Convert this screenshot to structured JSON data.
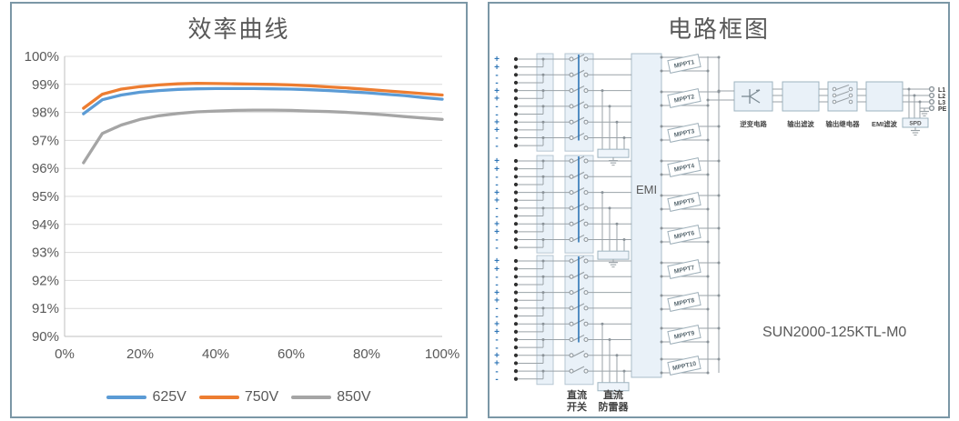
{
  "page": {
    "background": "#ffffff",
    "panel_border_color": "#7b97a6"
  },
  "left_panel": {
    "title": "效率曲线",
    "chart_data": {
      "type": "line",
      "title": "效率曲线",
      "xlabel": "",
      "ylabel": "",
      "xlim": [
        0,
        100
      ],
      "ylim": [
        90,
        100
      ],
      "xticks": [
        0,
        20,
        40,
        60,
        80,
        100
      ],
      "xtick_labels": [
        "0%",
        "20%",
        "40%",
        "60%",
        "80%",
        "100%"
      ],
      "yticks": [
        100,
        99,
        98,
        97,
        96,
        95,
        94,
        93,
        92,
        91,
        90
      ],
      "ytick_labels": [
        "100%",
        "99%",
        "98%",
        "97%",
        "96%",
        "95%",
        "94%",
        "93%",
        "92%",
        "91%",
        "90%"
      ],
      "grid": "horizontal",
      "legend_position": "bottom",
      "series": [
        {
          "name": "625V",
          "color": "#5B9BD5",
          "points": [
            [
              5,
              97.95
            ],
            [
              10,
              98.45
            ],
            [
              15,
              98.62
            ],
            [
              20,
              98.72
            ],
            [
              25,
              98.78
            ],
            [
              30,
              98.82
            ],
            [
              35,
              98.84
            ],
            [
              40,
              98.85
            ],
            [
              45,
              98.85
            ],
            [
              50,
              98.85
            ],
            [
              55,
              98.84
            ],
            [
              60,
              98.83
            ],
            [
              65,
              98.81
            ],
            [
              70,
              98.78
            ],
            [
              75,
              98.74
            ],
            [
              80,
              98.7
            ],
            [
              85,
              98.65
            ],
            [
              90,
              98.6
            ],
            [
              95,
              98.53
            ],
            [
              100,
              98.47
            ]
          ]
        },
        {
          "name": "750V",
          "color": "#ED7D31",
          "points": [
            [
              5,
              98.15
            ],
            [
              10,
              98.65
            ],
            [
              15,
              98.83
            ],
            [
              20,
              98.92
            ],
            [
              25,
              98.98
            ],
            [
              30,
              99.02
            ],
            [
              35,
              99.04
            ],
            [
              40,
              99.03
            ],
            [
              45,
              99.02
            ],
            [
              50,
              99.01
            ],
            [
              55,
              99.0
            ],
            [
              60,
              98.98
            ],
            [
              65,
              98.95
            ],
            [
              70,
              98.91
            ],
            [
              75,
              98.87
            ],
            [
              80,
              98.82
            ],
            [
              85,
              98.77
            ],
            [
              90,
              98.72
            ],
            [
              95,
              98.67
            ],
            [
              100,
              98.62
            ]
          ]
        },
        {
          "name": "850V",
          "color": "#A5A5A5",
          "points": [
            [
              5,
              96.2
            ],
            [
              10,
              97.25
            ],
            [
              15,
              97.55
            ],
            [
              20,
              97.75
            ],
            [
              25,
              97.88
            ],
            [
              30,
              97.96
            ],
            [
              35,
              98.02
            ],
            [
              40,
              98.05
            ],
            [
              45,
              98.07
            ],
            [
              50,
              98.08
            ],
            [
              55,
              98.08
            ],
            [
              60,
              98.07
            ],
            [
              65,
              98.05
            ],
            [
              70,
              98.03
            ],
            [
              75,
              98.0
            ],
            [
              80,
              97.96
            ],
            [
              85,
              97.91
            ],
            [
              90,
              97.85
            ],
            [
              95,
              97.8
            ],
            [
              100,
              97.75
            ]
          ]
        }
      ]
    }
  },
  "right_panel": {
    "title": "电路框图",
    "model_label": "SUN2000-125KTL-M0",
    "emi_block_label": "EMI",
    "mppt_blocks": [
      "MPPT1",
      "MPPT2",
      "MPPT3",
      "MPPT4",
      "MPPT5",
      "MPPT6",
      "MPPT7",
      "MPPT8",
      "MPPT9",
      "MPPT10"
    ],
    "terminal_sign_pattern": [
      "+",
      "+",
      "-",
      "-"
    ],
    "input_groups": [
      {
        "terminal_rows": 12,
        "string_pairs": 6
      },
      {
        "terminal_rows": 12,
        "string_pairs": 6
      },
      {
        "terminal_rows": 16,
        "string_pairs": 8
      }
    ],
    "block_labels": {
      "inverter": "逆变电路",
      "output_filter": "输出滤波",
      "output_relay": "输出继电器",
      "emi_filter": "EMI滤波",
      "surge_protector": "SPD",
      "dc_switch_line1": "直流",
      "dc_switch_line2": "开关",
      "dc_spd_line1": "直流",
      "dc_spd_line2": "防雷器"
    },
    "output_terminals": [
      "L1",
      "L2",
      "L3",
      "PE"
    ],
    "accent_colors": {
      "plus_sign": "#2e75b6",
      "minus_sign": "#2e75b6",
      "gang_line": "#2e75b6",
      "box_fill": "#e9f1f8",
      "line_gray": "#9aa2a7"
    }
  }
}
